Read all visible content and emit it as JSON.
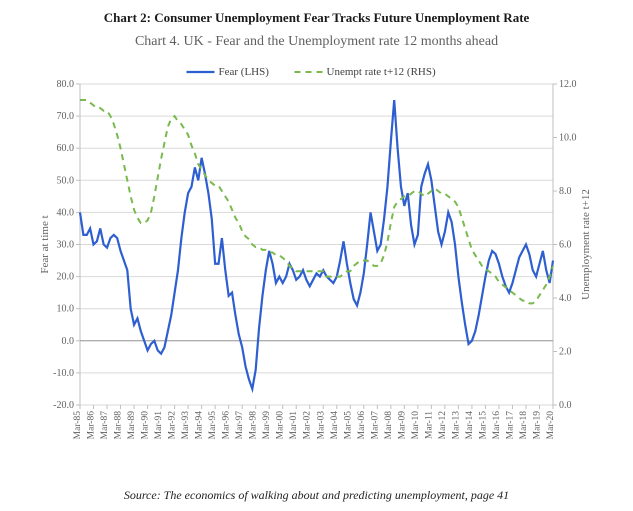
{
  "outer_title": "Chart 2: Consumer Unemployment Fear Tracks Future Unemployment Rate",
  "inner_title": "Chart 4.  UK - Fear and the Unemployment rate 12 months ahead",
  "source": "Source: The economics of walking about and predicting unemployment, page 41",
  "chart": {
    "type": "line-dual-axis",
    "background_color": "#ffffff",
    "plot_border_color": "#bfbfbf",
    "gridline_color": "#d9d9d9",
    "y_left": {
      "min": -20,
      "max": 80,
      "step": 10,
      "label": "Fear at time t"
    },
    "y_right": {
      "min": 0,
      "max": 12,
      "step": 2,
      "label": "Unemployment rate t+12"
    },
    "x": {
      "ticks": [
        "Mar-85",
        "Mar-86",
        "Mar-87",
        "Mar-88",
        "Mar-89",
        "Mar-90",
        "Mar-91",
        "Mar-92",
        "Mar-93",
        "Mar-94",
        "Mar-95",
        "Mar-96",
        "Mar-97",
        "Mar-98",
        "Mar-99",
        "Mar-00",
        "Mar-01",
        "Mar-02",
        "Mar-03",
        "Mar-04",
        "Mar-05",
        "Mar-06",
        "Mar-07",
        "Mar-08",
        "Mar-09",
        "Mar-10",
        "Mar-11",
        "Mar-12",
        "Mar-13",
        "Mar-14",
        "Mar-15",
        "Mar-16",
        "Mar-17",
        "Mar-18",
        "Mar-19",
        "Mar-20"
      ]
    },
    "n_points": 141,
    "series": [
      {
        "name": "Fear (LHS)",
        "axis": "left",
        "color": "#2e5fd0",
        "line_width": 2.2,
        "dash": null,
        "values": [
          40,
          33,
          33,
          35,
          30,
          31,
          35,
          30,
          29,
          32,
          33,
          32,
          28,
          25,
          22,
          10,
          5,
          7,
          3,
          0,
          -3,
          -1,
          0,
          -3,
          -4,
          -2,
          3,
          8,
          15,
          22,
          32,
          40,
          46,
          48,
          54,
          50,
          57,
          52,
          46,
          38,
          24,
          24,
          32,
          22,
          14,
          15,
          8,
          2,
          -2,
          -8,
          -12,
          -15,
          -9,
          4,
          14,
          22,
          28,
          24,
          18,
          20,
          18,
          20,
          24,
          22,
          19,
          20,
          22,
          19,
          17,
          19,
          21,
          20,
          22,
          20,
          19,
          18,
          20,
          25,
          31,
          24,
          18,
          13,
          11,
          15,
          21,
          30,
          40,
          34,
          28,
          30,
          38,
          48,
          62,
          75,
          60,
          48,
          42,
          46,
          36,
          30,
          33,
          48,
          52,
          55,
          50,
          42,
          34,
          30,
          34,
          40,
          37,
          30,
          20,
          12,
          5,
          -1,
          0,
          3,
          8,
          14,
          20,
          25,
          28,
          27,
          24,
          20,
          17,
          15,
          18,
          22,
          26,
          28,
          30,
          27,
          22,
          20,
          24,
          28,
          22,
          18,
          25
        ]
      },
      {
        "name": "Unempt rate t+12 (RHS)",
        "axis": "right",
        "color": "#79b94d",
        "line_width": 2.0,
        "dash": "6 5",
        "values": [
          11.4,
          11.4,
          11.4,
          11.3,
          11.2,
          11.1,
          11.1,
          11.0,
          11.0,
          10.8,
          10.5,
          10.1,
          9.6,
          9.0,
          8.4,
          7.8,
          7.3,
          7.0,
          6.8,
          6.8,
          6.9,
          7.2,
          7.8,
          8.5,
          9.2,
          9.8,
          10.4,
          10.7,
          10.8,
          10.6,
          10.5,
          10.3,
          10.1,
          9.7,
          9.4,
          9.0,
          8.8,
          8.6,
          8.4,
          8.3,
          8.2,
          8.2,
          8.0,
          7.8,
          7.6,
          7.3,
          7.0,
          6.8,
          6.5,
          6.3,
          6.2,
          6.0,
          5.9,
          5.9,
          5.8,
          5.8,
          5.7,
          5.7,
          5.6,
          5.6,
          5.5,
          5.4,
          5.2,
          5.1,
          5.0,
          5.0,
          5.0,
          5.0,
          5.0,
          5.0,
          5.0,
          5.0,
          5.0,
          4.8,
          4.8,
          4.8,
          4.8,
          4.8,
          4.9,
          5.0,
          5.0,
          5.2,
          5.3,
          5.4,
          5.4,
          5.4,
          5.3,
          5.2,
          5.2,
          5.3,
          5.6,
          6.1,
          6.8,
          7.4,
          7.6,
          7.7,
          7.8,
          7.8,
          7.9,
          8.0,
          8.0,
          7.9,
          7.8,
          7.9,
          8.0,
          8.1,
          8.0,
          7.9,
          7.9,
          7.8,
          7.7,
          7.6,
          7.4,
          7.0,
          6.6,
          6.2,
          5.8,
          5.6,
          5.4,
          5.2,
          5.1,
          5.0,
          4.9,
          4.8,
          4.6,
          4.5,
          4.4,
          4.3,
          4.2,
          4.1,
          4.0,
          3.9,
          3.9,
          3.8,
          3.8,
          3.9,
          4.1,
          4.3,
          4.5,
          4.8,
          5.2
        ]
      }
    ],
    "legend": {
      "position": "top-center"
    }
  }
}
